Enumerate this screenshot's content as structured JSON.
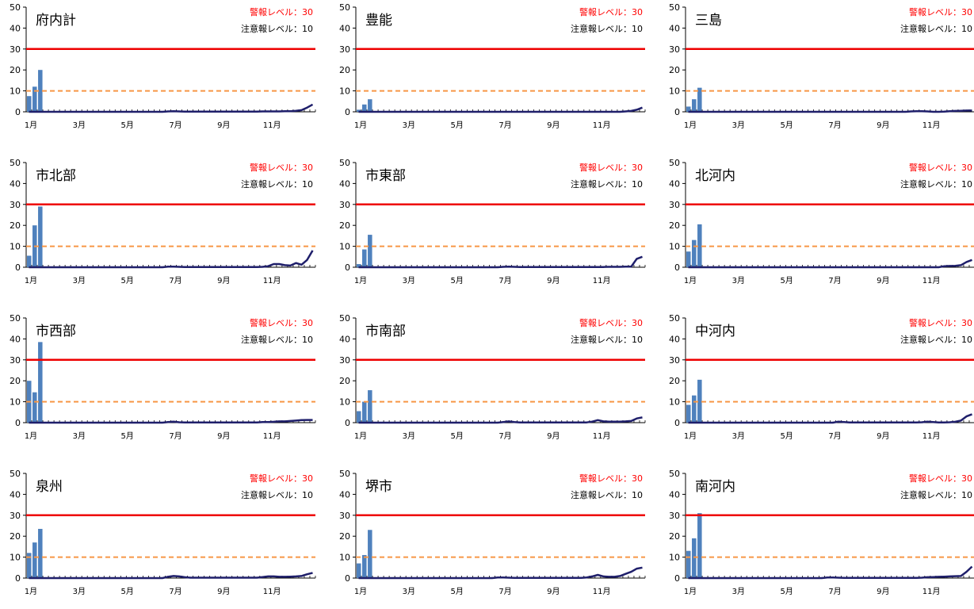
{
  "chart_data": [
    {
      "type": "bar",
      "title": "府内計",
      "alarm_label": "警報レベル：30",
      "warning_label": "注意報レベル：10",
      "alarm_level": 30,
      "warning_level": 10,
      "ylim": [
        0,
        50
      ],
      "yticks": [
        0,
        10,
        20,
        30,
        40,
        50
      ],
      "month_labels": [
        "1月",
        "3月",
        "5月",
        "7月",
        "9月",
        "11月"
      ],
      "weeks": 52,
      "bars": [
        7.5,
        12,
        20
      ],
      "line": [
        0,
        0,
        0,
        0,
        0,
        0,
        0,
        0,
        0,
        0,
        0,
        0,
        0,
        0,
        0,
        0,
        0,
        0,
        0,
        0,
        0,
        0,
        0,
        0,
        0,
        0.2,
        0.3,
        0.2,
        0.1,
        0.1,
        0.1,
        0.1,
        0.1,
        0.1,
        0.1,
        0.1,
        0.1,
        0.1,
        0.1,
        0.1,
        0.1,
        0.1,
        0.2,
        0.2,
        0.2,
        0.2,
        0.3,
        0.3,
        0.5,
        0.8,
        2.0,
        3.5
      ]
    },
    {
      "type": "bar",
      "title": "豊能",
      "alarm_label": "警報レベル：30",
      "warning_label": "注意報レベル：10",
      "alarm_level": 30,
      "warning_level": 10,
      "ylim": [
        0,
        50
      ],
      "yticks": [
        0,
        10,
        20,
        30,
        40,
        50
      ],
      "month_labels": [
        "1月",
        "3月",
        "5月",
        "7月",
        "9月",
        "11月"
      ],
      "weeks": 52,
      "bars": [
        1,
        3.5,
        6
      ],
      "line": [
        0,
        0,
        0,
        0,
        0,
        0,
        0,
        0,
        0,
        0,
        0,
        0,
        0,
        0,
        0,
        0,
        0,
        0,
        0,
        0,
        0,
        0,
        0,
        0,
        0,
        0,
        0,
        0,
        0,
        0,
        0,
        0,
        0,
        0,
        0,
        0,
        0,
        0,
        0,
        0,
        0,
        0,
        0,
        0,
        0,
        0,
        0,
        0,
        0.2,
        0.4,
        1.0,
        2.0
      ]
    },
    {
      "type": "bar",
      "title": "三島",
      "alarm_label": "警報レベル：30",
      "warning_label": "注意報レベル：10",
      "alarm_level": 30,
      "warning_level": 10,
      "ylim": [
        0,
        50
      ],
      "yticks": [
        0,
        10,
        20,
        30,
        40,
        50
      ],
      "month_labels": [
        "1月",
        "3月",
        "5月",
        "7月",
        "9月",
        "11月"
      ],
      "weeks": 52,
      "bars": [
        2.5,
        6,
        11.5
      ],
      "line": [
        0,
        0,
        0,
        0,
        0,
        0,
        0,
        0,
        0,
        0,
        0,
        0,
        0,
        0,
        0,
        0,
        0,
        0,
        0,
        0,
        0,
        0,
        0,
        0,
        0,
        0,
        0,
        0,
        0,
        0,
        0,
        0,
        0,
        0,
        0,
        0,
        0,
        0,
        0,
        0,
        0.2,
        0.3,
        0.3,
        0.2,
        0,
        0,
        0.1,
        0.3,
        0.4,
        0.5,
        0.6,
        0.6
      ]
    },
    {
      "type": "bar",
      "title": "市北部",
      "alarm_label": "警報レベル：30",
      "warning_label": "注意報レベル：10",
      "alarm_level": 30,
      "warning_level": 10,
      "ylim": [
        0,
        50
      ],
      "yticks": [
        0,
        10,
        20,
        30,
        40,
        50
      ],
      "month_labels": [
        "1月",
        "3月",
        "5月",
        "7月",
        "9月",
        "11月"
      ],
      "weeks": 52,
      "bars": [
        5.5,
        20,
        29
      ],
      "line": [
        0,
        0,
        0,
        0,
        0,
        0,
        0,
        0,
        0,
        0,
        0,
        0,
        0,
        0,
        0,
        0,
        0,
        0,
        0,
        0,
        0,
        0,
        0,
        0,
        0,
        0.3,
        0.3,
        0.2,
        0.1,
        0.1,
        0.1,
        0.1,
        0.1,
        0.1,
        0.1,
        0.1,
        0.1,
        0.1,
        0.1,
        0.1,
        0.1,
        0.1,
        0.2,
        0.5,
        1.5,
        1.5,
        1.0,
        0.8,
        2.0,
        1.2,
        3.5,
        8.0
      ]
    },
    {
      "type": "bar",
      "title": "市東部",
      "alarm_label": "警報レベル：30",
      "warning_label": "注意報レベル：10",
      "alarm_level": 30,
      "warning_level": 10,
      "ylim": [
        0,
        50
      ],
      "yticks": [
        0,
        10,
        20,
        30,
        40,
        50
      ],
      "month_labels": [
        "1月",
        "3月",
        "5月",
        "7月",
        "9月",
        "11月"
      ],
      "weeks": 52,
      "bars": [
        1.5,
        8.5,
        15.5
      ],
      "line": [
        0,
        0,
        0,
        0,
        0,
        0,
        0,
        0,
        0,
        0,
        0,
        0,
        0,
        0,
        0,
        0,
        0,
        0,
        0,
        0,
        0,
        0,
        0,
        0,
        0,
        0,
        0.2,
        0.3,
        0.2,
        0.1,
        0.1,
        0.1,
        0.1,
        0.1,
        0.1,
        0.1,
        0.1,
        0.1,
        0.1,
        0.1,
        0.1,
        0.1,
        0.1,
        0.1,
        0.1,
        0.2,
        0.2,
        0.2,
        0.3,
        0.3,
        4.0,
        5.0
      ]
    },
    {
      "type": "bar",
      "title": "北河内",
      "alarm_label": "警報レベル：30",
      "warning_label": "注意報レベル：10",
      "alarm_level": 30,
      "warning_level": 10,
      "ylim": [
        0,
        50
      ],
      "yticks": [
        0,
        10,
        20,
        30,
        40,
        50
      ],
      "month_labels": [
        "1月",
        "3月",
        "5月",
        "7月",
        "9月",
        "11月"
      ],
      "weeks": 52,
      "bars": [
        7.5,
        13,
        20.5
      ],
      "line": [
        0,
        0,
        0,
        0,
        0,
        0,
        0,
        0,
        0,
        0,
        0,
        0,
        0,
        0,
        0,
        0,
        0,
        0,
        0,
        0,
        0,
        0,
        0,
        0,
        0,
        0,
        0,
        0,
        0,
        0,
        0,
        0,
        0,
        0,
        0,
        0,
        0,
        0,
        0,
        0,
        0,
        0,
        0,
        0,
        0,
        0,
        0.5,
        0.6,
        0.7,
        1.0,
        2.5,
        3.5
      ]
    },
    {
      "type": "bar",
      "title": "市西部",
      "alarm_label": "警報レベル：30",
      "warning_label": "注意報レベル：10",
      "alarm_level": 30,
      "warning_level": 10,
      "ylim": [
        0,
        50
      ],
      "yticks": [
        0,
        10,
        20,
        30,
        40,
        50
      ],
      "month_labels": [
        "1月",
        "3月",
        "5月",
        "7月",
        "9月",
        "11月"
      ],
      "weeks": 52,
      "bars": [
        20,
        14.5,
        38.5
      ],
      "line": [
        0,
        0,
        0,
        0,
        0,
        0,
        0,
        0,
        0,
        0,
        0,
        0,
        0,
        0,
        0,
        0,
        0,
        0,
        0,
        0,
        0,
        0,
        0,
        0,
        0,
        0.3,
        0.5,
        0.2,
        0.1,
        0.1,
        0.1,
        0.1,
        0.1,
        0.1,
        0.1,
        0.1,
        0.1,
        0.1,
        0.1,
        0.1,
        0.1,
        0.1,
        0.3,
        0.3,
        0.4,
        0.6,
        0.6,
        0.8,
        1.0,
        1.2,
        1.3,
        1.3
      ]
    },
    {
      "type": "bar",
      "title": "市南部",
      "alarm_label": "警報レベル：30",
      "warning_label": "注意報レベル：10",
      "alarm_level": 30,
      "warning_level": 10,
      "ylim": [
        0,
        50
      ],
      "yticks": [
        0,
        10,
        20,
        30,
        40,
        50
      ],
      "month_labels": [
        "1月",
        "3月",
        "5月",
        "7月",
        "9月",
        "11月"
      ],
      "weeks": 52,
      "bars": [
        5.5,
        10,
        15.5
      ],
      "line": [
        0,
        0,
        0,
        0,
        0,
        0,
        0,
        0,
        0,
        0,
        0,
        0,
        0,
        0,
        0,
        0,
        0,
        0,
        0,
        0,
        0,
        0,
        0,
        0,
        0,
        0,
        0.3,
        0.6,
        0.3,
        0.1,
        0.1,
        0.1,
        0.1,
        0.1,
        0.1,
        0.1,
        0.1,
        0.1,
        0.1,
        0.1,
        0.1,
        0.1,
        0.5,
        1.2,
        0.6,
        0.5,
        0.5,
        0.5,
        0.6,
        0.8,
        2.0,
        2.5
      ]
    },
    {
      "type": "bar",
      "title": "中河内",
      "alarm_label": "警報レベル：30",
      "warning_label": "注意報レベル：10",
      "alarm_level": 30,
      "warning_level": 10,
      "ylim": [
        0,
        50
      ],
      "yticks": [
        0,
        10,
        20,
        30,
        40,
        50
      ],
      "month_labels": [
        "1月",
        "3月",
        "5月",
        "7月",
        "9月",
        "11月"
      ],
      "weeks": 52,
      "bars": [
        8.5,
        13,
        20.5
      ],
      "line": [
        0,
        0,
        0,
        0,
        0,
        0,
        0,
        0,
        0,
        0,
        0,
        0,
        0,
        0,
        0,
        0,
        0,
        0,
        0,
        0,
        0,
        0,
        0,
        0,
        0,
        0,
        0,
        0.5,
        0.3,
        0.1,
        0.1,
        0.1,
        0.1,
        0.1,
        0.1,
        0.1,
        0.1,
        0.1,
        0.1,
        0.1,
        0.1,
        0.1,
        0.2,
        0.5,
        0.3,
        0.1,
        0.1,
        0.2,
        0.4,
        1.0,
        3.0,
        4.0
      ]
    },
    {
      "type": "bar",
      "title": "泉州",
      "alarm_label": "警報レベル：30",
      "warning_label": "注意報レベル：10",
      "alarm_level": 30,
      "warning_level": 10,
      "ylim": [
        0,
        50
      ],
      "yticks": [
        0,
        10,
        20,
        30,
        40,
        50
      ],
      "month_labels": [
        "1月",
        "3月",
        "5月",
        "7月",
        "9月",
        "11月"
      ],
      "weeks": 52,
      "bars": [
        12,
        17,
        23.5
      ],
      "line": [
        0,
        0,
        0,
        0,
        0,
        0,
        0,
        0,
        0,
        0,
        0,
        0,
        0,
        0,
        0,
        0,
        0,
        0,
        0,
        0,
        0,
        0,
        0,
        0,
        0,
        0.6,
        1.0,
        0.8,
        0.4,
        0.2,
        0.2,
        0.2,
        0.2,
        0.2,
        0.2,
        0.2,
        0.2,
        0.2,
        0.2,
        0.2,
        0.2,
        0.2,
        0.5,
        0.8,
        0.8,
        0.6,
        0.6,
        0.7,
        0.8,
        1.0,
        1.8,
        2.5
      ]
    },
    {
      "type": "bar",
      "title": "堺市",
      "alarm_label": "警報レベル：30",
      "warning_label": "注意報レベル：10",
      "alarm_level": 30,
      "warning_level": 10,
      "ylim": [
        0,
        50
      ],
      "yticks": [
        0,
        10,
        20,
        30,
        40,
        50
      ],
      "month_labels": [
        "1月",
        "3月",
        "5月",
        "7月",
        "9月",
        "11月"
      ],
      "weeks": 52,
      "bars": [
        7,
        11,
        23
      ],
      "line": [
        0,
        0,
        0,
        0,
        0,
        0,
        0,
        0,
        0,
        0,
        0,
        0,
        0,
        0,
        0,
        0,
        0,
        0,
        0,
        0,
        0,
        0,
        0,
        0,
        0,
        0.3,
        0.3,
        0.2,
        0.1,
        0.1,
        0.1,
        0.1,
        0.1,
        0.1,
        0.1,
        0.1,
        0.1,
        0.1,
        0.1,
        0.1,
        0.1,
        0.3,
        0.8,
        1.5,
        0.8,
        0.6,
        0.6,
        1.0,
        2.0,
        3.0,
        4.5,
        5.0
      ]
    },
    {
      "type": "bar",
      "title": "南河内",
      "alarm_label": "警報レベル：30",
      "warning_label": "注意報レベル：10",
      "alarm_level": 30,
      "warning_level": 10,
      "ylim": [
        0,
        50
      ],
      "yticks": [
        0,
        10,
        20,
        30,
        40,
        50
      ],
      "month_labels": [
        "1月",
        "3月",
        "5月",
        "7月",
        "9月",
        "11月"
      ],
      "weeks": 52,
      "bars": [
        13,
        19,
        31
      ],
      "line": [
        0,
        0,
        0,
        0,
        0,
        0,
        0,
        0,
        0,
        0,
        0,
        0,
        0,
        0,
        0,
        0,
        0,
        0,
        0,
        0,
        0,
        0,
        0,
        0,
        0,
        0.3,
        0.3,
        0.2,
        0.1,
        0.1,
        0.1,
        0.1,
        0.1,
        0.1,
        0.1,
        0.1,
        0.1,
        0.1,
        0.1,
        0.1,
        0.1,
        0.1,
        0.2,
        0.4,
        0.5,
        0.6,
        0.7,
        0.8,
        0.9,
        1.0,
        3.0,
        5.5
      ]
    }
  ],
  "colors": {
    "bar": "#4f81bd",
    "line": "#1f1f6b",
    "alarm": "#ee0000",
    "warning": "#f79646",
    "axis": "#000000"
  }
}
